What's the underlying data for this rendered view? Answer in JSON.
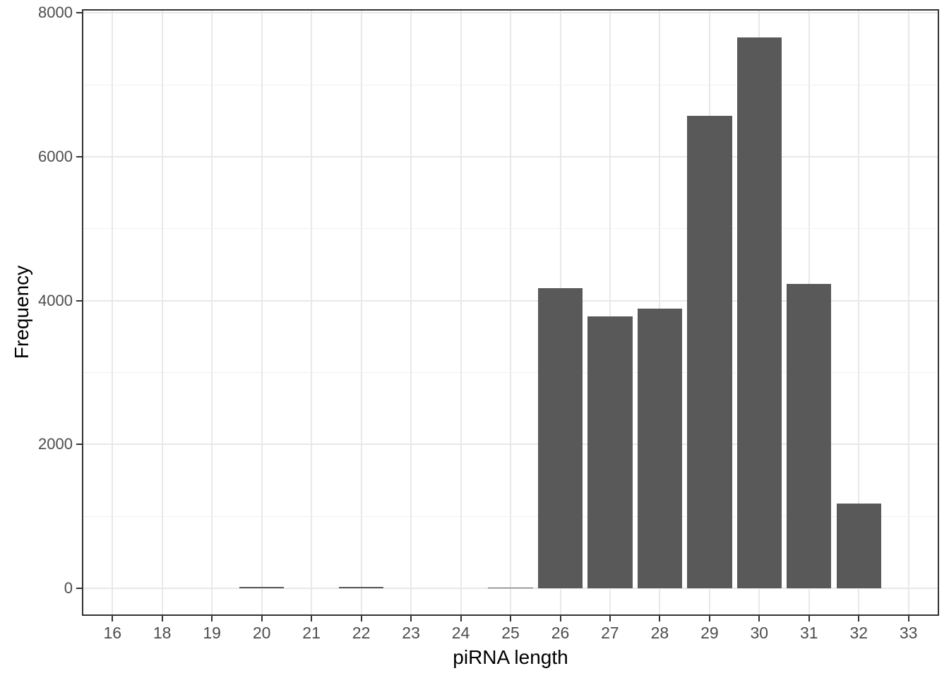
{
  "chart_data": {
    "type": "bar",
    "title": "",
    "xlabel": "piRNA length",
    "ylabel": "Frequency",
    "categories": [
      "16",
      "18",
      "19",
      "20",
      "21",
      "22",
      "23",
      "24",
      "25",
      "26",
      "27",
      "28",
      "29",
      "30",
      "31",
      "32",
      "33"
    ],
    "values": [
      2,
      2,
      3,
      20,
      4,
      20,
      3,
      4,
      15,
      4170,
      3780,
      3890,
      6570,
      7660,
      4230,
      1180,
      2
    ],
    "y_ticks": [
      0,
      2000,
      4000,
      6000,
      8000
    ],
    "y_tick_labels": [
      "0",
      "2000",
      "4000",
      "6000",
      "8000"
    ],
    "y_minor_ticks": [
      1000,
      3000,
      5000,
      7000
    ],
    "ylim": [
      0,
      8000
    ],
    "grid": "on",
    "legend": "none",
    "colors": {
      "bar_fill": "#595959",
      "panel_border": "#333333",
      "grid_major": "#e8e8e8",
      "grid_minor": "#f0f0f0",
      "tick_label": "#4d4d4d",
      "axis_title": "#000000",
      "background": "#ffffff"
    }
  }
}
